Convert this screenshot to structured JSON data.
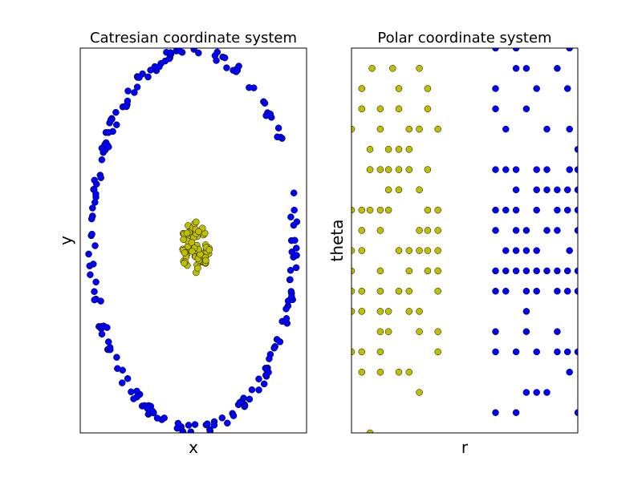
{
  "colors": {
    "class_outer": "#0000ff",
    "class_inner": "#bfbf00",
    "marker_edge": "#000000",
    "axes_frame": "#000000",
    "background": "#ffffff"
  },
  "chart_data": [
    {
      "type": "scatter",
      "title": "Catresian coordinate system",
      "xlabel": "x",
      "ylabel": "y",
      "xticks": [],
      "yticks": [],
      "grid": false,
      "legend": "none",
      "xlim": [
        -1.5,
        1.5
      ],
      "ylim": [
        -1.7,
        1.7
      ],
      "series": [
        {
          "values": {
            "shape": "ring",
            "count": 200,
            "center": [
              0,
              0
            ],
            "rx": 1.35,
            "ry": 1.67,
            "jitter": 0.05
          }
        },
        {
          "values": {
            "shape": "blob",
            "count": 70,
            "center": [
              0.02,
              -0.07
            ],
            "rx": 0.19,
            "ry": 0.24
          }
        }
      ]
    },
    {
      "type": "scatter",
      "title": "Polar coordinate system",
      "xlabel": "r",
      "ylabel": "theta",
      "xticks": [],
      "yticks": [],
      "grid": false,
      "legend": "none",
      "xlim": [
        0,
        11
      ],
      "ylim": [
        0,
        19
      ],
      "series": [
        {
          "points": [
            [
              7,
              19
            ],
            [
              8,
              19
            ],
            [
              10.6,
              19
            ],
            [
              8,
              18
            ],
            [
              8.5,
              18
            ],
            [
              10,
              18
            ],
            [
              7,
              17
            ],
            [
              9,
              17
            ],
            [
              10.5,
              17
            ],
            [
              7,
              16
            ],
            [
              8.5,
              16
            ],
            [
              7.5,
              15
            ],
            [
              9.5,
              15
            ],
            [
              10.6,
              15
            ],
            [
              11,
              14
            ],
            [
              7,
              13
            ],
            [
              7.5,
              13
            ],
            [
              8,
              13
            ],
            [
              9,
              13
            ],
            [
              9.5,
              13
            ],
            [
              10.6,
              13
            ],
            [
              11,
              13
            ],
            [
              8,
              12
            ],
            [
              9,
              12
            ],
            [
              9.5,
              12
            ],
            [
              10,
              12
            ],
            [
              10.5,
              12
            ],
            [
              11,
              12
            ],
            [
              7,
              11
            ],
            [
              7.5,
              11
            ],
            [
              8,
              11
            ],
            [
              9,
              11
            ],
            [
              10,
              11
            ],
            [
              10.5,
              11
            ],
            [
              11,
              11
            ],
            [
              7,
              10
            ],
            [
              8,
              10
            ],
            [
              8.5,
              10
            ],
            [
              9.5,
              10
            ],
            [
              10,
              10
            ],
            [
              11,
              10
            ],
            [
              7.5,
              9
            ],
            [
              8,
              9
            ],
            [
              8.5,
              9
            ],
            [
              9,
              9
            ],
            [
              10.6,
              9
            ],
            [
              7,
              8
            ],
            [
              7.5,
              8
            ],
            [
              8,
              8
            ],
            [
              8.5,
              8
            ],
            [
              9,
              8
            ],
            [
              9.5,
              8
            ],
            [
              10,
              8
            ],
            [
              10.5,
              8
            ],
            [
              11,
              8
            ],
            [
              7,
              7
            ],
            [
              7.5,
              7
            ],
            [
              8.5,
              7
            ],
            [
              9,
              7
            ],
            [
              10,
              7
            ],
            [
              10.5,
              7
            ],
            [
              11,
              7
            ],
            [
              8.5,
              6
            ],
            [
              7,
              5
            ],
            [
              8.5,
              5
            ],
            [
              10,
              5
            ],
            [
              7,
              4
            ],
            [
              8,
              4
            ],
            [
              9,
              4
            ],
            [
              10,
              4
            ],
            [
              10.5,
              4
            ],
            [
              11,
              4
            ],
            [
              10.6,
              3
            ],
            [
              8.5,
              2
            ],
            [
              9,
              2
            ],
            [
              9.5,
              2
            ],
            [
              7,
              1
            ],
            [
              8,
              1
            ],
            [
              11,
              1
            ]
          ]
        },
        {
          "points": [
            [
              1,
              18
            ],
            [
              2,
              18
            ],
            [
              3.3,
              18
            ],
            [
              0.5,
              17
            ],
            [
              2.3,
              17
            ],
            [
              3.7,
              17
            ],
            [
              0.5,
              16
            ],
            [
              1.4,
              16
            ],
            [
              2.3,
              16
            ],
            [
              3.7,
              16
            ],
            [
              0,
              15
            ],
            [
              1.4,
              15
            ],
            [
              2.8,
              15
            ],
            [
              3.3,
              15
            ],
            [
              4.2,
              15
            ],
            [
              0.9,
              14
            ],
            [
              1.8,
              14
            ],
            [
              2.3,
              14
            ],
            [
              2.8,
              14
            ],
            [
              0.9,
              13
            ],
            [
              1.4,
              13
            ],
            [
              1.8,
              13
            ],
            [
              2.3,
              13
            ],
            [
              2.8,
              13
            ],
            [
              3.7,
              13
            ],
            [
              1.8,
              12
            ],
            [
              2.3,
              12
            ],
            [
              3.3,
              12
            ],
            [
              0,
              11
            ],
            [
              0.5,
              11
            ],
            [
              0.9,
              11
            ],
            [
              1.4,
              11
            ],
            [
              1.8,
              11
            ],
            [
              3.7,
              11
            ],
            [
              4.2,
              11
            ],
            [
              0.5,
              10
            ],
            [
              1.4,
              10
            ],
            [
              3.3,
              10
            ],
            [
              3.7,
              10
            ],
            [
              4.2,
              10
            ],
            [
              0,
              9
            ],
            [
              0.5,
              9
            ],
            [
              2.3,
              9
            ],
            [
              2.8,
              9
            ],
            [
              3.3,
              9
            ],
            [
              3.7,
              9
            ],
            [
              4.2,
              9
            ],
            [
              0,
              8
            ],
            [
              1.4,
              8
            ],
            [
              2.8,
              8
            ],
            [
              3.7,
              8
            ],
            [
              4.2,
              8
            ],
            [
              0,
              7
            ],
            [
              0.5,
              7
            ],
            [
              1.4,
              7
            ],
            [
              2.3,
              7
            ],
            [
              2.8,
              7
            ],
            [
              4.2,
              7
            ],
            [
              0,
              6
            ],
            [
              0.5,
              6
            ],
            [
              1.4,
              6
            ],
            [
              1.8,
              6
            ],
            [
              2.8,
              6
            ],
            [
              3.3,
              6
            ],
            [
              1.4,
              5
            ],
            [
              1.8,
              5
            ],
            [
              3.3,
              5
            ],
            [
              4.2,
              5
            ],
            [
              0,
              4
            ],
            [
              0.5,
              4
            ],
            [
              1.4,
              4
            ],
            [
              4.2,
              4
            ],
            [
              0.5,
              3
            ],
            [
              1.4,
              3
            ],
            [
              2.3,
              3
            ],
            [
              2.8,
              3
            ],
            [
              3.3,
              2
            ],
            [
              0.9,
              0
            ]
          ]
        }
      ]
    }
  ]
}
